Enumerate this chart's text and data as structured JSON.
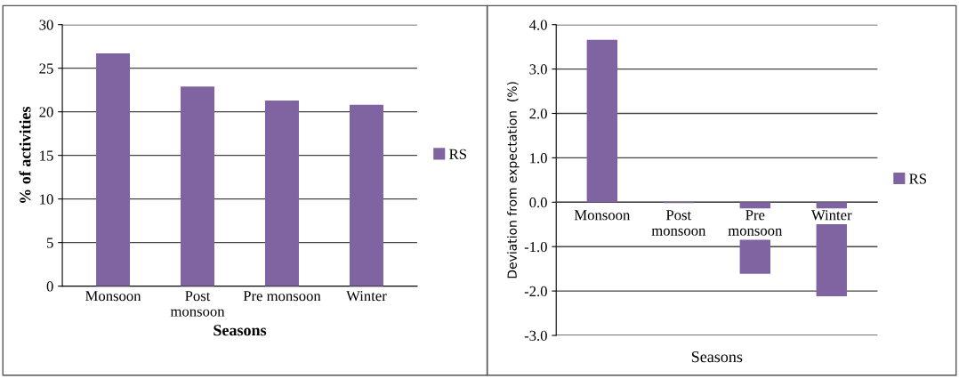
{
  "chart_data": [
    {
      "type": "bar",
      "xlabel": "Seasons",
      "ylabel": "% of activities",
      "categories": [
        "Monsoon",
        "Post\nmonsoon",
        "Pre monsoon",
        "Winter"
      ],
      "series": [
        {
          "name": "RS",
          "color": "#8064a2",
          "values": [
            26.7,
            22.9,
            21.3,
            20.8
          ]
        }
      ],
      "ylim": [
        0,
        30
      ],
      "yticks": [
        0,
        5,
        10,
        15,
        20,
        25,
        30
      ],
      "grid": "y",
      "legend": "right"
    },
    {
      "type": "bar",
      "xlabel": "Seasons",
      "ylabel": "Deviation from expectation  (%)",
      "categories": [
        "Monsoon",
        "Post\nmonsoon",
        "Pre\nmonsoon",
        "Winter"
      ],
      "series": [
        {
          "name": "RS",
          "color": "#8064a2",
          "values": [
            3.66,
            -0.02,
            -1.61,
            -2.12
          ]
        }
      ],
      "ylim": [
        -3,
        4
      ],
      "yticks": [
        {
          "value": -3,
          "label": "-3.0"
        },
        {
          "value": -2,
          "label": "-2.0"
        },
        {
          "value": -1,
          "label": "-1.0"
        },
        {
          "value": 0,
          "label": "0.0"
        },
        {
          "value": 1,
          "label": "1.0"
        },
        {
          "value": 2,
          "label": "2.0"
        },
        {
          "value": 3,
          "label": "3.0"
        },
        {
          "value": 4,
          "label": "4.0"
        }
      ],
      "grid": "y",
      "legend": "right"
    }
  ]
}
